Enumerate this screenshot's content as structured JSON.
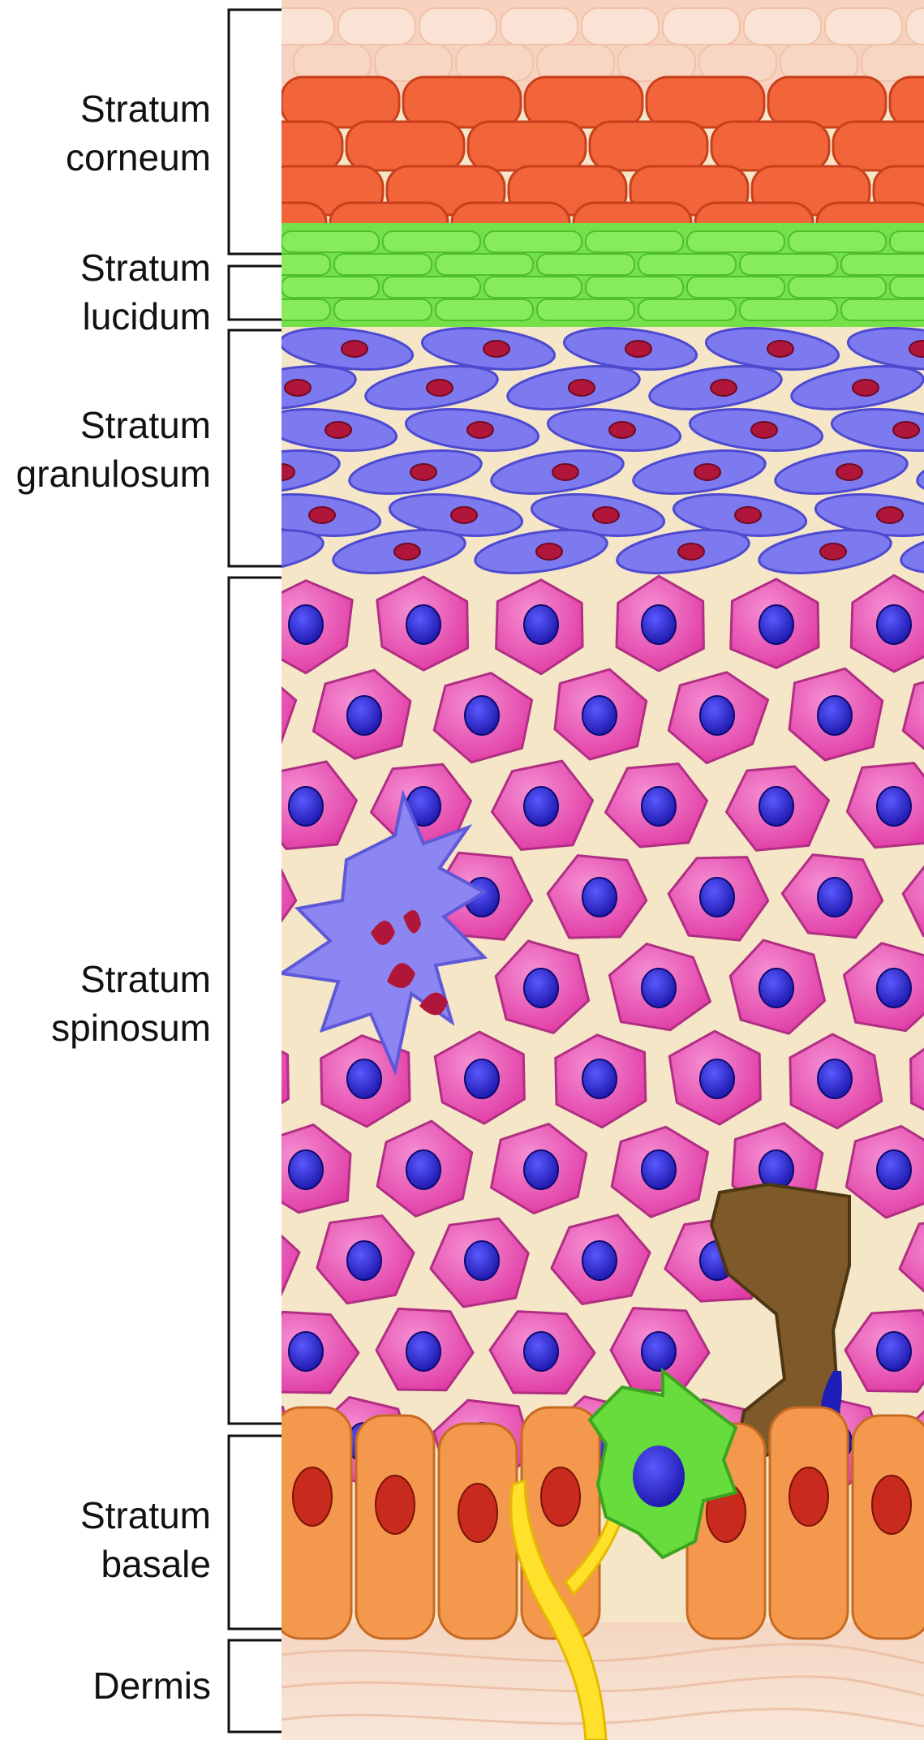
{
  "layers": [
    {
      "id": "corneum",
      "line1": "Stratum",
      "line2": "corneum"
    },
    {
      "id": "lucidum",
      "line1": "Stratum",
      "line2": "lucidum"
    },
    {
      "id": "granulosum",
      "line1": "Stratum",
      "line2": "granulosum"
    },
    {
      "id": "spinosum",
      "line1": "Stratum",
      "line2": "spinosum"
    },
    {
      "id": "basale",
      "line1": "Stratum",
      "line2": "basale"
    },
    {
      "id": "dermis",
      "line1": "Dermis",
      "line2": ""
    }
  ],
  "colors": {
    "corneum": "#f2653a",
    "corneum_top": "#f7d2c0",
    "lucidum": "#74e04a",
    "granulosum_cell": "#7d7af0",
    "granulosum_nucleus": "#b0163a",
    "spinosum_cell": "#ee4fb4",
    "spinosum_nucleus": "#1f1db8",
    "intercellular": "#f5e6c8",
    "basale_cell": "#f4984e",
    "basale_nucleus": "#c92a1e",
    "langerhans_cell": "#8c86f2",
    "melanocyte": "#7e5a2a",
    "merkel_cell": "#66dd3c",
    "nerve_fiber": "#ffe02a",
    "dermis": "#f6dcc8"
  }
}
